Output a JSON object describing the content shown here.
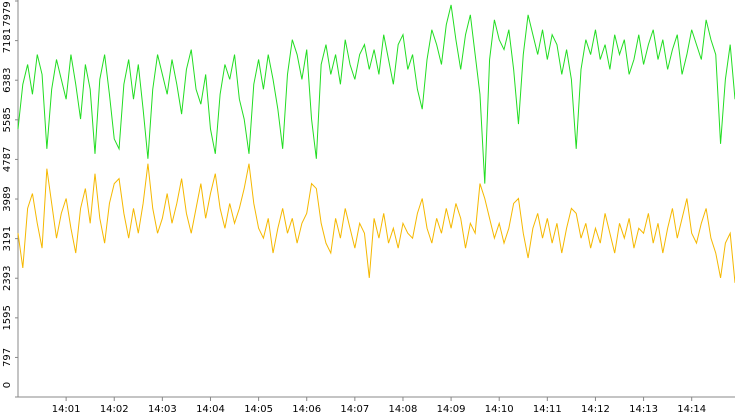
{
  "chart_data": {
    "type": "line",
    "x": [
      0,
      0.1,
      0.2,
      0.3,
      0.4,
      0.5,
      0.6,
      0.7,
      0.8,
      0.9,
      1,
      1.1,
      1.2,
      1.3,
      1.4,
      1.5,
      1.6,
      1.7,
      1.8,
      1.9,
      2,
      2.1,
      2.2,
      2.3,
      2.4,
      2.5,
      2.6,
      2.7,
      2.8,
      2.9,
      3,
      3.1,
      3.2,
      3.3,
      3.4,
      3.5,
      3.6,
      3.7,
      3.8,
      3.9,
      4,
      4.1,
      4.2,
      4.3,
      4.4,
      4.5,
      4.6,
      4.7,
      4.8,
      4.9,
      5,
      5.1,
      5.2,
      5.3,
      5.4,
      5.5,
      5.6,
      5.7,
      5.8,
      5.9,
      6,
      6.1,
      6.2,
      6.3,
      6.4,
      6.5,
      6.6,
      6.7,
      6.8,
      6.9,
      7,
      7.1,
      7.2,
      7.3,
      7.4,
      7.5,
      7.6,
      7.7,
      7.8,
      7.9,
      8,
      8.1,
      8.2,
      8.3,
      8.4,
      8.5,
      8.6,
      8.7,
      8.8,
      8.9,
      9,
      9.1,
      9.2,
      9.3,
      9.4,
      9.5,
      9.6,
      9.7,
      9.8,
      9.9,
      10,
      10.1,
      10.2,
      10.3,
      10.4,
      10.5,
      10.6,
      10.7,
      10.8,
      10.9,
      11,
      11.1,
      11.2,
      11.3,
      11.4,
      11.5,
      11.6,
      11.7,
      11.8,
      11.9,
      12,
      12.1,
      12.2,
      12.3,
      12.4,
      12.5,
      12.6,
      12.7,
      12.8,
      12.9,
      13,
      13.1,
      13.2,
      13.3,
      13.4,
      13.5,
      13.6,
      13.7,
      13.8,
      13.9,
      14,
      14.1,
      14.2,
      14.3,
      14.4,
      14.5,
      14.6,
      14.7,
      14.8,
      14.9
    ],
    "series": [
      {
        "color": "#22dd22",
        "values": [
          5400,
          6300,
          6700,
          6100,
          6900,
          6500,
          5000,
          6200,
          6800,
          6400,
          6000,
          6900,
          6300,
          5600,
          6700,
          6200,
          4900,
          6400,
          6900,
          6100,
          5200,
          5000,
          6300,
          6800,
          6000,
          6700,
          5800,
          4800,
          6200,
          6900,
          6500,
          6100,
          6800,
          6300,
          5700,
          6600,
          7000,
          6200,
          5900,
          6500,
          5400,
          4900,
          6100,
          6700,
          6400,
          6900,
          6000,
          5600,
          4900,
          6300,
          6800,
          6200,
          6900,
          6400,
          5800,
          5000,
          6500,
          7200,
          6900,
          6400,
          7000,
          5600,
          4800,
          6700,
          7100,
          6500,
          6900,
          6300,
          7200,
          6700,
          6400,
          6900,
          7100,
          6600,
          7000,
          6500,
          7300,
          6800,
          6300,
          7100,
          7300,
          6600,
          6900,
          6200,
          5800,
          6800,
          7400,
          7100,
          6700,
          7500,
          7900,
          7200,
          6600,
          7300,
          7700,
          6900,
          6100,
          4300,
          6800,
          7600,
          7200,
          7000,
          7400,
          6600,
          5500,
          6900,
          7700,
          7300,
          6900,
          7400,
          6800,
          7300,
          7100,
          6500,
          7000,
          6400,
          5000,
          6600,
          7200,
          6900,
          7400,
          6800,
          7100,
          6600,
          7300,
          6900,
          7200,
          6500,
          6800,
          7300,
          6700,
          7100,
          7400,
          6800,
          7200,
          6600,
          7000,
          7300,
          6500,
          6900,
          7400,
          7100,
          6800,
          7600,
          7200,
          6900,
          5100,
          6400,
          7100,
          6000
        ]
      },
      {
        "color": "#f5b800",
        "values": [
          3300,
          2600,
          3800,
          4100,
          3500,
          3000,
          4600,
          3900,
          3200,
          3700,
          4000,
          3400,
          2900,
          3800,
          4200,
          3500,
          4500,
          3600,
          3100,
          3900,
          4300,
          4400,
          3700,
          3200,
          3800,
          3300,
          3900,
          4700,
          3800,
          3300,
          3600,
          4100,
          3500,
          3900,
          4400,
          3700,
          3300,
          3800,
          4300,
          3600,
          4100,
          4500,
          3800,
          3400,
          3900,
          3500,
          3800,
          4200,
          4700,
          3900,
          3400,
          3200,
          3600,
          2900,
          3400,
          3800,
          3300,
          3600,
          3100,
          3500,
          3700,
          4300,
          4200,
          3500,
          3100,
          2900,
          3600,
          3200,
          3800,
          3400,
          3000,
          3500,
          3300,
          2400,
          3600,
          3200,
          3700,
          3100,
          3400,
          3000,
          3500,
          3300,
          3200,
          3700,
          4000,
          3400,
          3100,
          3600,
          3300,
          3800,
          3400,
          3900,
          3600,
          3000,
          3500,
          3300,
          4300,
          4000,
          3600,
          3200,
          3500,
          3100,
          3400,
          3900,
          4000,
          3300,
          2800,
          3400,
          3700,
          3200,
          3600,
          3100,
          3500,
          2900,
          3400,
          3800,
          3700,
          3200,
          3500,
          3000,
          3400,
          3100,
          3700,
          3300,
          2900,
          3500,
          3200,
          3600,
          3000,
          3400,
          3300,
          3700,
          3100,
          3500,
          2900,
          3400,
          3800,
          3200,
          3600,
          4000,
          3300,
          3100,
          3500,
          3800,
          3200,
          2900,
          2400,
          3100,
          3300,
          2300
        ]
      }
    ],
    "xlim": [
      0,
      14.9
    ],
    "xticks": [
      {
        "value": 1,
        "label": "14:01"
      },
      {
        "value": 2,
        "label": "14:02"
      },
      {
        "value": 3,
        "label": "14:03"
      },
      {
        "value": 4,
        "label": "14:04"
      },
      {
        "value": 5,
        "label": "14:05"
      },
      {
        "value": 6,
        "label": "14:06"
      },
      {
        "value": 7,
        "label": "14:07"
      },
      {
        "value": 8,
        "label": "14:08"
      },
      {
        "value": 9,
        "label": "14:09"
      },
      {
        "value": 10,
        "label": "14:10"
      },
      {
        "value": 11,
        "label": "14:11"
      },
      {
        "value": 12,
        "label": "14:12"
      },
      {
        "value": 13,
        "label": "14:13"
      },
      {
        "value": 14,
        "label": "14:14"
      }
    ],
    "ylim": [
      0,
      7979
    ],
    "yticks": [
      0,
      797,
      1595,
      2393,
      3191,
      3989,
      4787,
      5585,
      6383,
      7181,
      7979
    ]
  }
}
